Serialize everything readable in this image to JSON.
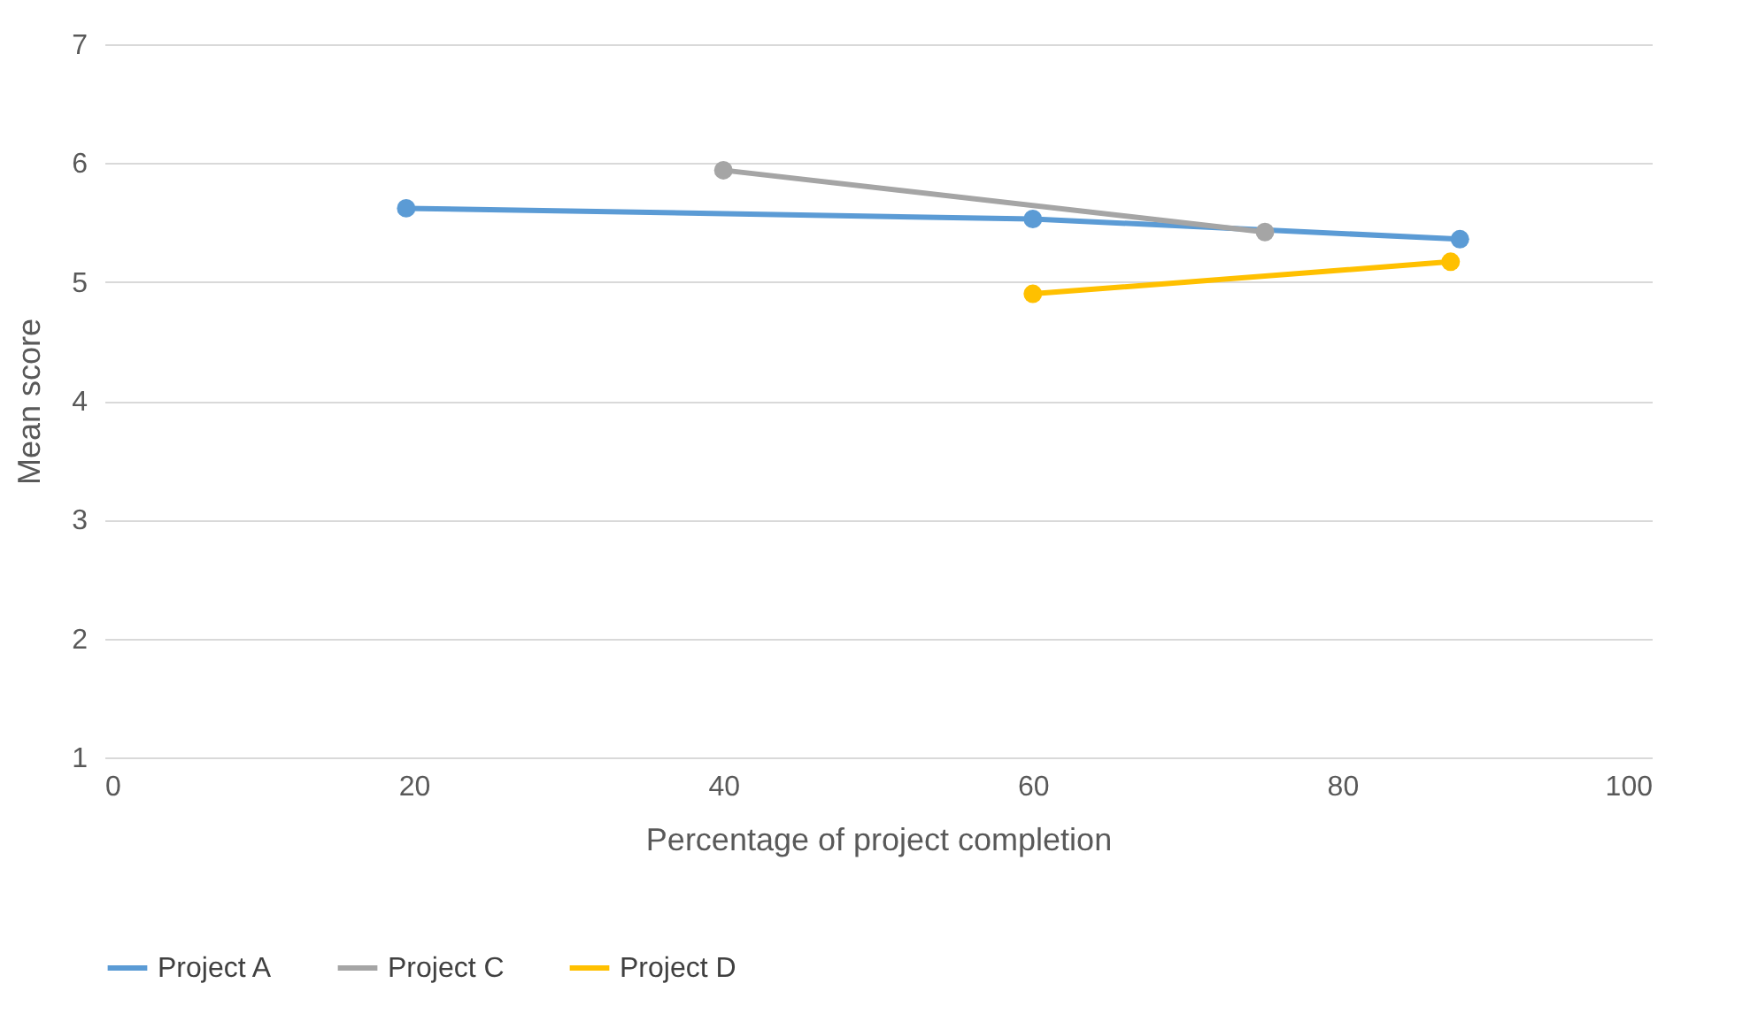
{
  "chart_data": {
    "type": "line",
    "xlabel": "Percentage of project completion",
    "ylabel": "Mean score",
    "xlim": [
      0,
      100
    ],
    "xticks": [
      0,
      20,
      40,
      60,
      80,
      100
    ],
    "ylim": [
      1,
      7
    ],
    "yticks": [
      1,
      2,
      3,
      4,
      5,
      6,
      7
    ],
    "grid": "y",
    "legend": "bottom",
    "marker": "circle",
    "line_style": "solid",
    "series": [
      {
        "name": "Project A",
        "color": "#5b9bd5",
        "x": [
          19.5,
          60,
          87.6
        ],
        "values": [
          5.62,
          5.53,
          5.36
        ]
      },
      {
        "name": "Project C",
        "color": "#a5a5a5",
        "x": [
          40,
          75
        ],
        "values": [
          5.94,
          5.42
        ]
      },
      {
        "name": "Project D",
        "color": "#ffc000",
        "x": [
          60,
          87
        ],
        "values": [
          4.9,
          5.17
        ]
      }
    ]
  }
}
